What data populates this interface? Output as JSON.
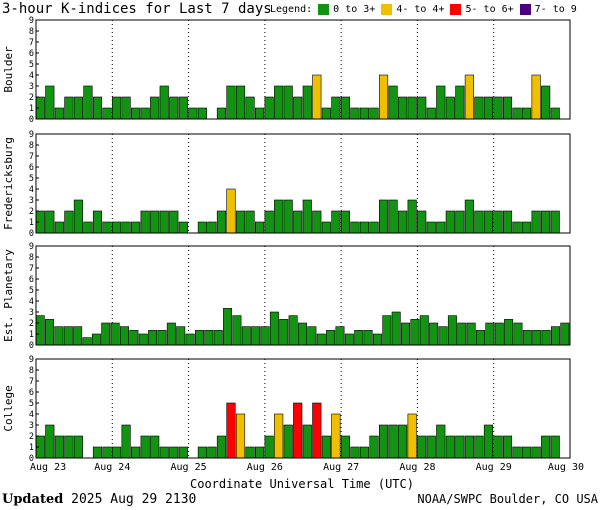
{
  "title": "3-hour K-indices for Last 7 days",
  "legend": {
    "label": "Legend:",
    "items": [
      {
        "label": "0 to 3+",
        "color": "#129312"
      },
      {
        "label": "4- to 4+",
        "color": "#f0c000"
      },
      {
        "label": "5- to 6+",
        "color": "#ff0000"
      },
      {
        "label": "7- to 9",
        "color": "#4b0082"
      }
    ]
  },
  "footer": {
    "updated_label": "Updated",
    "updated_value": "2025 Aug 29 2130",
    "source": "NOAA/SWPC Boulder, CO USA"
  },
  "chart_data": {
    "type": "bar",
    "xlabel": "Coordinate Universal Time (UTC)",
    "x_tick_labels": [
      "Aug 23",
      "Aug 24",
      "Aug 25",
      "Aug 26",
      "Aug 27",
      "Aug 28",
      "Aug 29",
      "Aug 30"
    ],
    "y_ticks": [
      "0",
      "1",
      "2",
      "3",
      "4",
      "5",
      "6",
      "7",
      "8",
      "9"
    ],
    "ylim": [
      0,
      9
    ],
    "grid": true,
    "bins_per_day": 8,
    "panels": [
      {
        "name": "Boulder",
        "values": [
          2,
          3,
          1,
          2,
          2,
          3,
          2,
          1,
          2,
          2,
          1,
          1,
          2,
          3,
          2,
          2,
          1,
          1,
          0,
          1,
          3,
          3,
          2,
          1,
          2,
          3,
          3,
          2,
          3,
          4,
          1,
          2,
          2,
          1,
          1,
          1,
          4,
          3,
          2,
          2,
          2,
          1,
          3,
          2,
          3,
          4,
          2,
          2,
          2,
          2,
          1,
          1,
          4,
          3,
          1,
          0
        ]
      },
      {
        "name": "Fredericksburg",
        "values": [
          2,
          2,
          1,
          2,
          3,
          1,
          2,
          1,
          1,
          1,
          1,
          2,
          2,
          2,
          2,
          1,
          0,
          1,
          1,
          2,
          4,
          2,
          2,
          1,
          2,
          3,
          3,
          2,
          3,
          2,
          1,
          2,
          2,
          1,
          1,
          1,
          3,
          3,
          2,
          3,
          2,
          1,
          1,
          2,
          2,
          3,
          2,
          2,
          2,
          2,
          1,
          1,
          2,
          2,
          2,
          0
        ]
      },
      {
        "name": "Est. Planetary",
        "values": [
          2.67,
          2.33,
          1.67,
          1.67,
          1.67,
          0.67,
          1.0,
          2.0,
          2.0,
          1.67,
          1.33,
          1.0,
          1.33,
          1.33,
          2.0,
          1.67,
          1.0,
          1.33,
          1.33,
          1.33,
          3.33,
          2.67,
          1.67,
          1.67,
          1.67,
          3.0,
          2.33,
          2.67,
          2.0,
          1.67,
          1.0,
          1.33,
          1.67,
          1.0,
          1.33,
          1.33,
          1.0,
          2.67,
          3.0,
          2.0,
          2.33,
          2.67,
          2.0,
          1.67,
          2.67,
          2.0,
          2.0,
          1.33,
          2.0,
          2.0,
          2.33,
          2.0,
          1.33,
          1.33,
          1.33,
          1.67,
          2.0
        ]
      },
      {
        "name": "College",
        "values": [
          2,
          3,
          2,
          2,
          2,
          0,
          1,
          1,
          1,
          3,
          1,
          2,
          2,
          1,
          1,
          1,
          0,
          1,
          1,
          2,
          5,
          4,
          1,
          1,
          2,
          4,
          3,
          5,
          3,
          5,
          2,
          4,
          2,
          1,
          1,
          2,
          3,
          3,
          3,
          4,
          2,
          2,
          3,
          2,
          2,
          2,
          2,
          3,
          2,
          2,
          1,
          1,
          1,
          2,
          2,
          0
        ]
      }
    ]
  }
}
